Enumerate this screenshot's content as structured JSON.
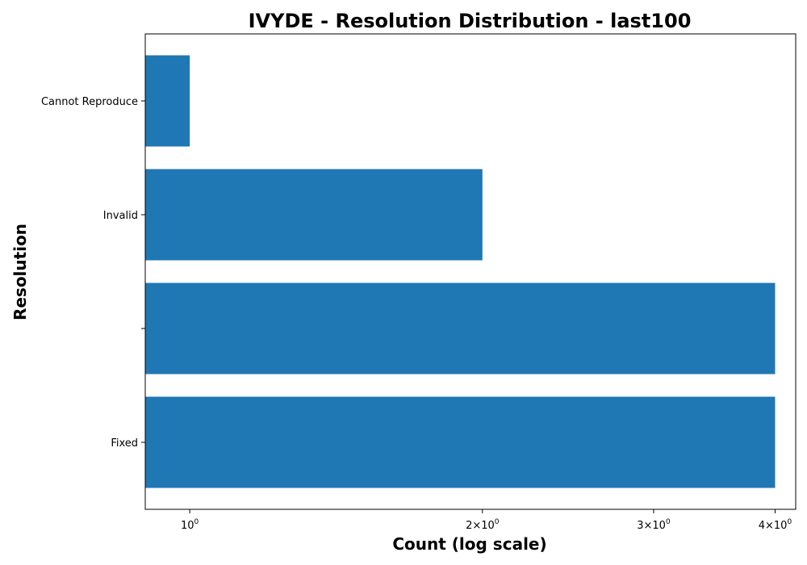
{
  "chart_data": {
    "type": "bar",
    "orientation": "horizontal",
    "title": "IVYDE - Resolution Distribution - last100",
    "xlabel": "Count (log scale)",
    "ylabel": "Resolution",
    "x_scale": "log",
    "xlim": [
      0.9,
      4.2
    ],
    "grid": false,
    "categories": [
      "Fixed",
      "",
      "Invalid",
      "Cannot Reproduce"
    ],
    "values": [
      4,
      4,
      2,
      1
    ],
    "xticks": [
      {
        "base": "10",
        "exp": "0",
        "mult": ""
      },
      {
        "base": "10",
        "exp": "0",
        "mult": "2×"
      },
      {
        "base": "10",
        "exp": "0",
        "mult": "3×"
      },
      {
        "base": "10",
        "exp": "0",
        "mult": "4×"
      }
    ],
    "xtick_values": [
      1,
      2,
      3,
      4
    ],
    "bar_color": "#1f77b4"
  }
}
